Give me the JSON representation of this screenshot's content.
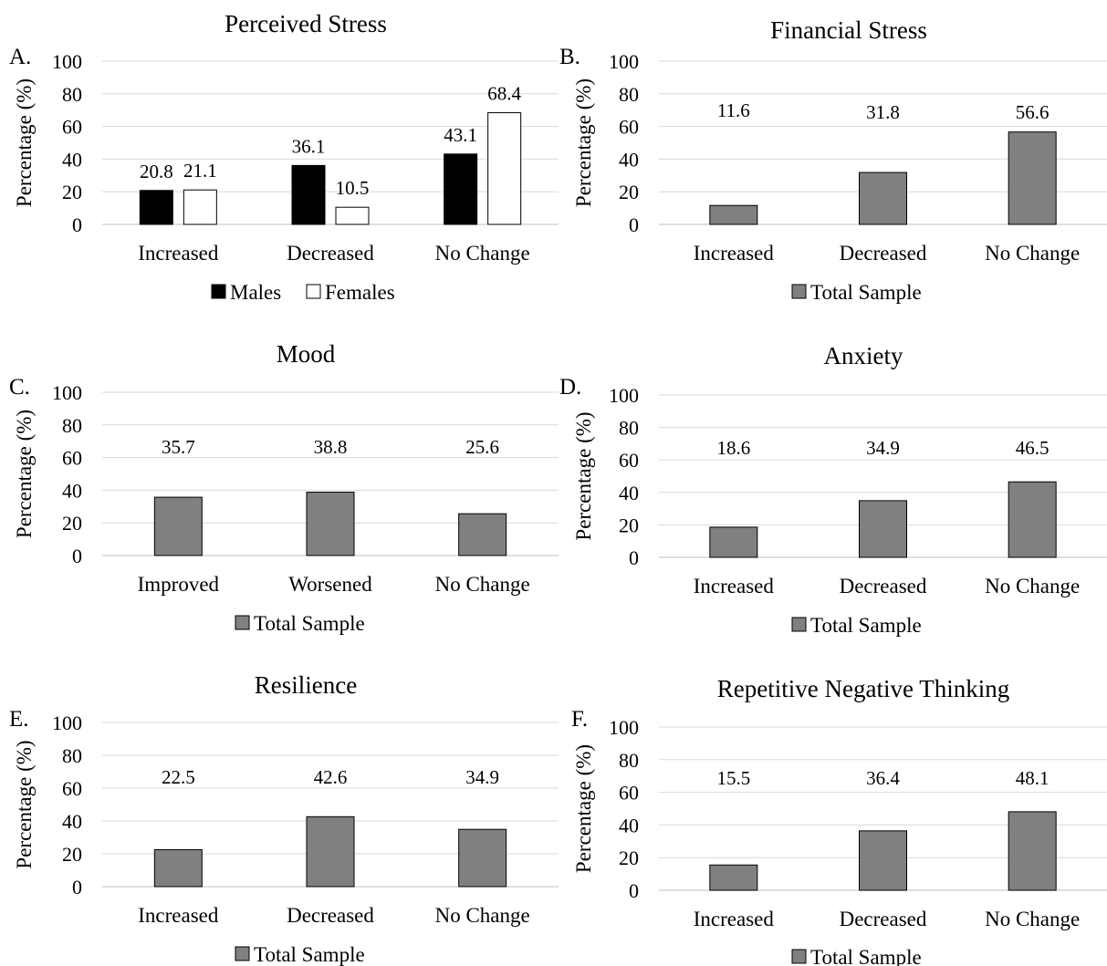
{
  "colors": {
    "males": "#000000",
    "females": "#ffffff",
    "total": "#808080",
    "grid": "#d9d9d9",
    "stroke": "#000000"
  },
  "chart_data": [
    {
      "type": "bar",
      "panel": "A.",
      "title": "Perceived Stress",
      "ylabel": "Percentage (%)",
      "ylim": [
        0,
        100
      ],
      "yticks": [
        0,
        20,
        40,
        60,
        80,
        100
      ],
      "grid": true,
      "legend_position": "bottom",
      "categories": [
        "Increased",
        "Decreased",
        "No Change"
      ],
      "series": [
        {
          "name": "Males",
          "color": "#000000",
          "values": [
            20.8,
            36.1,
            43.1
          ],
          "labels": [
            "20.8",
            "36.1",
            "43.1"
          ]
        },
        {
          "name": "Females",
          "color": "#ffffff",
          "values": [
            21.1,
            10.5,
            68.4
          ],
          "labels": [
            "21.1",
            "10.5",
            "68.4"
          ]
        }
      ]
    },
    {
      "type": "bar",
      "panel": "B.",
      "title": "Financial Stress",
      "ylabel": "Percentage (%)",
      "ylim": [
        0,
        100
      ],
      "yticks": [
        0,
        20,
        40,
        60,
        80,
        100
      ],
      "grid": true,
      "legend_position": "bottom",
      "categories": [
        "Increased",
        "Decreased",
        "No Change"
      ],
      "series": [
        {
          "name": "Total Sample",
          "color": "#808080",
          "values": [
            11.6,
            31.8,
            56.6
          ],
          "labels": [
            "11.6",
            "31.8",
            "56.6"
          ]
        }
      ]
    },
    {
      "type": "bar",
      "panel": "C.",
      "title": "Mood",
      "ylabel": "Percentage (%)",
      "ylim": [
        0,
        100
      ],
      "yticks": [
        0,
        20,
        40,
        60,
        80,
        100
      ],
      "grid": true,
      "legend_position": "bottom",
      "categories": [
        "Improved",
        "Worsened",
        "No Change"
      ],
      "series": [
        {
          "name": "Total Sample",
          "color": "#808080",
          "values": [
            35.7,
            38.8,
            25.6
          ],
          "labels": [
            "35.7",
            "38.8",
            "25.6"
          ]
        }
      ]
    },
    {
      "type": "bar",
      "panel": "D.",
      "title": "Anxiety",
      "ylabel": "Percentage (%)",
      "ylim": [
        0,
        100
      ],
      "yticks": [
        0,
        20,
        40,
        60,
        80,
        100
      ],
      "grid": true,
      "legend_position": "bottom",
      "categories": [
        "Increased",
        "Decreased",
        "No Change"
      ],
      "series": [
        {
          "name": "Total Sample",
          "color": "#808080",
          "values": [
            18.6,
            34.9,
            46.5
          ],
          "labels": [
            "18.6",
            "34.9",
            "46.5"
          ]
        }
      ]
    },
    {
      "type": "bar",
      "panel": "E.",
      "title": "Resilience",
      "ylabel": "Percentage (%)",
      "ylim": [
        0,
        100
      ],
      "yticks": [
        0,
        20,
        40,
        60,
        80,
        100
      ],
      "grid": true,
      "legend_position": "bottom",
      "categories": [
        "Increased",
        "Decreased",
        "No Change"
      ],
      "series": [
        {
          "name": "Total Sample",
          "color": "#808080",
          "values": [
            22.5,
            42.6,
            34.9
          ],
          "labels": [
            "22.5",
            "42.6",
            "34.9"
          ]
        }
      ]
    },
    {
      "type": "bar",
      "panel": "F.",
      "title": "Repetitive Negative Thinking",
      "ylabel": "Percentage (%)",
      "ylim": [
        0,
        100
      ],
      "yticks": [
        0,
        20,
        40,
        60,
        80,
        100
      ],
      "grid": true,
      "legend_position": "bottom",
      "categories": [
        "Increased",
        "Decreased",
        "No Change"
      ],
      "series": [
        {
          "name": "Total Sample",
          "color": "#808080",
          "values": [
            15.5,
            36.4,
            48.1
          ],
          "labels": [
            "15.5",
            "36.4",
            "48.1"
          ]
        }
      ]
    }
  ]
}
